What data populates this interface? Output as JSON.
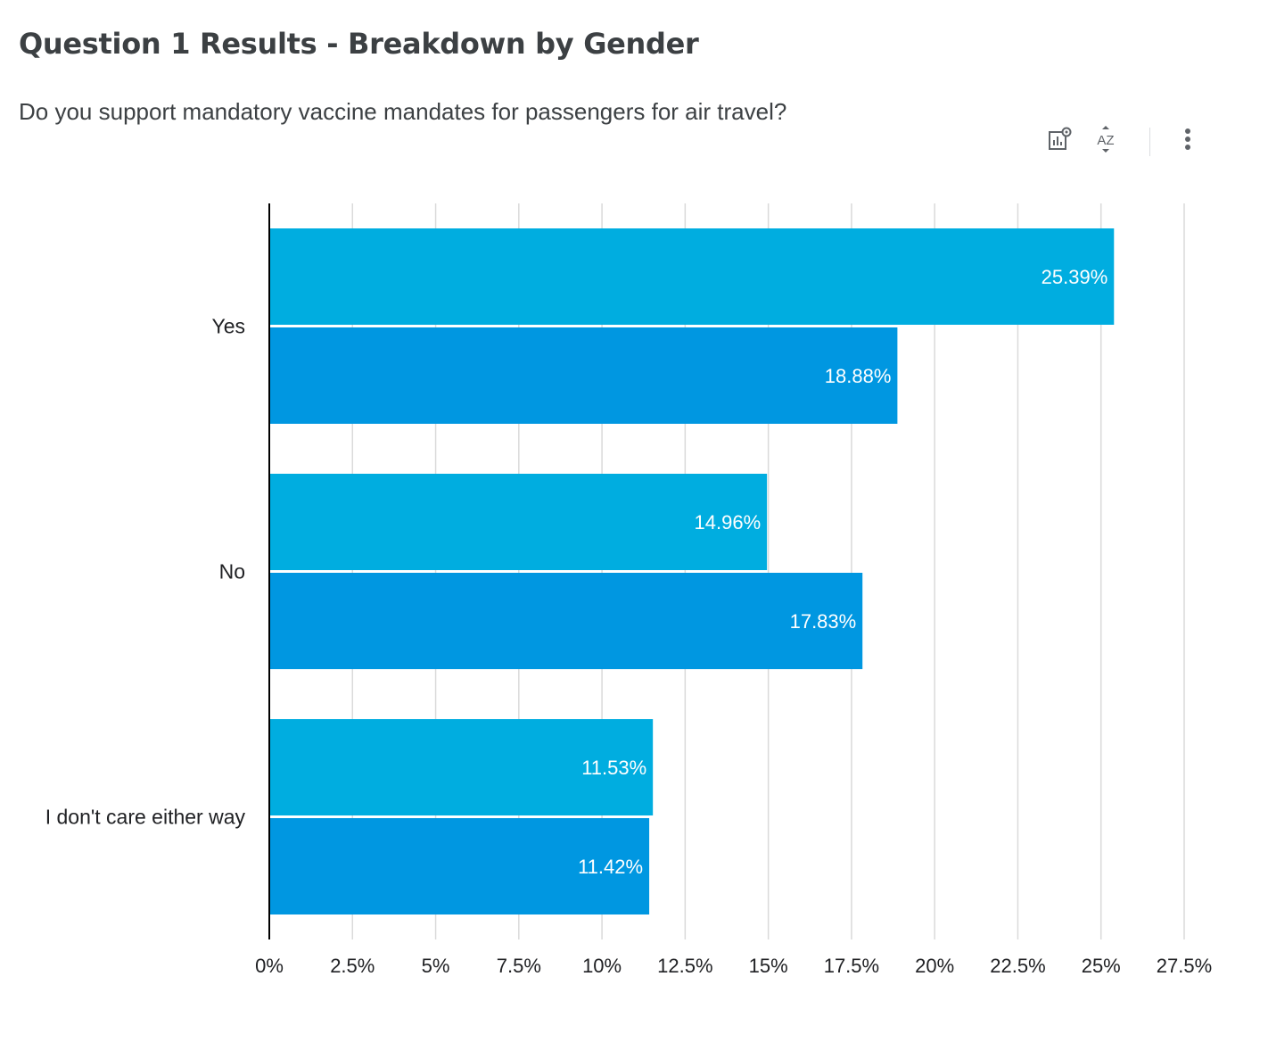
{
  "title": "Question 1 Results - Breakdown by Gender",
  "subtitle": "Do you support mandatory vaccine mandates for passengers for air travel?",
  "toolbar": {
    "icons": [
      "chart-settings-icon",
      "sort-az-icon",
      "more-vert-icon"
    ],
    "sort_label": "AZ"
  },
  "colors": {
    "series1": "#00ADE0",
    "series2": "#0097E1",
    "grid": "#dadada",
    "axis": "#000000",
    "data_label": "#ffffff"
  },
  "chart_data": {
    "type": "bar",
    "orientation": "horizontal",
    "categories": [
      "Yes",
      "No",
      "I don't care either way"
    ],
    "series": [
      {
        "values": [
          25.39,
          14.96,
          11.53
        ]
      },
      {
        "values": [
          18.88,
          17.83,
          11.42
        ]
      }
    ],
    "data_labels": [
      [
        "25.39%",
        "14.96%",
        "11.53%"
      ],
      [
        "18.88%",
        "17.83%",
        "11.42%"
      ]
    ],
    "xlim": [
      0,
      27.5
    ],
    "xticks": [
      0,
      2.5,
      5,
      7.5,
      10,
      12.5,
      15,
      17.5,
      20,
      22.5,
      25,
      27.5
    ],
    "xtick_labels": [
      "0%",
      "2.5%",
      "5%",
      "7.5%",
      "10%",
      "12.5%",
      "15%",
      "17.5%",
      "20%",
      "22.5%",
      "25%",
      "27.5%"
    ],
    "grid": true,
    "legend": "none"
  }
}
